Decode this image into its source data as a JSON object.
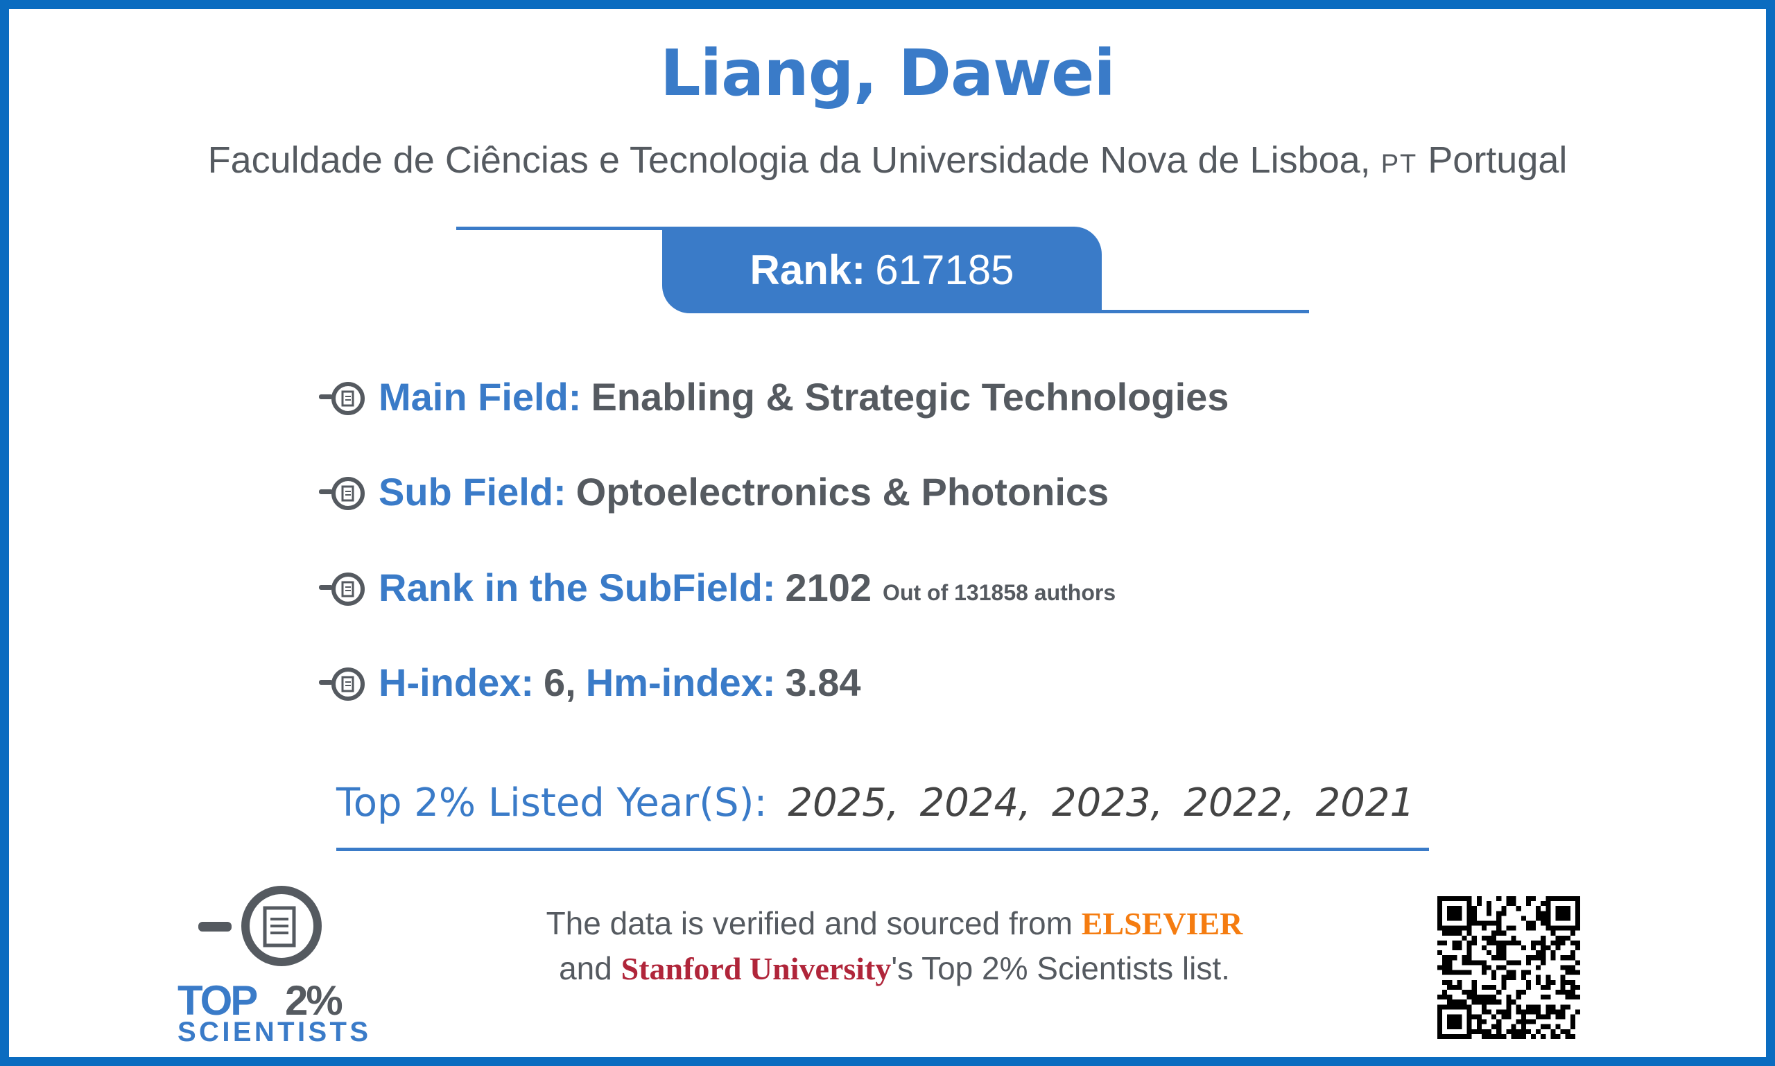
{
  "name": "Liang, Dawei",
  "affiliation": "Faculdade de Ciências e Tecnologia da Universidade Nova de Lisboa,",
  "country_code": "PT",
  "country": "Portugal",
  "rank": {
    "label": "Rank:",
    "value": "617185"
  },
  "items": [
    {
      "label": "Main Field:",
      "value": "Enabling & Strategic Technologies"
    },
    {
      "label": "Sub Field:",
      "value": "Optoelectronics & Photonics"
    },
    {
      "label": "Rank in the SubField:",
      "value": "2102",
      "note": "Out of 131858 authors"
    },
    {
      "label": "H-index:",
      "value": "6,",
      "label2": "Hm-index:",
      "value2": "3.84"
    }
  ],
  "years": {
    "label": "Top 2% Listed Year(S):",
    "list": [
      "2025,",
      "2024,",
      "2023,",
      "2022,",
      "2021"
    ]
  },
  "footer": {
    "line1_pre": "The data is verified and sourced from ",
    "elsevier": "ELSEVIER",
    "line2_pre": "and ",
    "stanford": "Stanford University",
    "line2_post": "'s Top 2% Scientists list."
  },
  "logo": {
    "top": "TOP",
    "pct": "2%",
    "sub": "SCIENTISTS"
  },
  "colors": {
    "accent": "#3a7bc8",
    "border": "#0b6cc0",
    "text": "#555a60",
    "elsevier": "#f57c10",
    "stanford": "#b0253a"
  },
  "icons": {
    "bullet": "magnifier-document-icon",
    "qr": "qr-code"
  }
}
